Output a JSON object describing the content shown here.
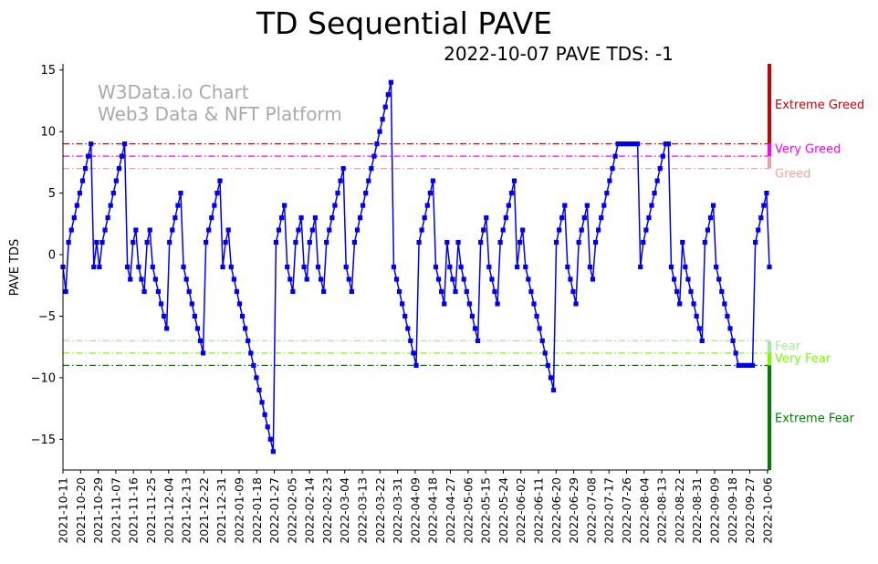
{
  "chart_data": {
    "type": "line",
    "title": "TD Sequential PAVE",
    "subtitle": "2022-10-07 PAVE TDS: -1",
    "ylabel": "PAVE TDS",
    "xlabel": "",
    "ylim": [
      -17.5,
      15.5
    ],
    "yticks": [
      -15,
      -10,
      -5,
      0,
      5,
      10,
      15
    ],
    "watermark": [
      "W3Data.io Chart",
      "Web3 Data & NFT Platform"
    ],
    "xticks": [
      "2021-10-11",
      "2021-10-20",
      "2021-10-29",
      "2021-11-07",
      "2021-11-16",
      "2021-11-25",
      "2021-12-04",
      "2021-12-13",
      "2021-12-22",
      "2021-12-31",
      "2022-01-09",
      "2022-01-18",
      "2022-01-27",
      "2022-02-05",
      "2022-02-14",
      "2022-02-23",
      "2022-03-04",
      "2022-03-13",
      "2022-03-22",
      "2022-03-31",
      "2022-04-09",
      "2022-04-18",
      "2022-04-27",
      "2022-05-06",
      "2022-05-15",
      "2022-05-24",
      "2022-06-02",
      "2022-06-11",
      "2022-06-20",
      "2022-06-29",
      "2022-07-08",
      "2022-07-17",
      "2022-07-26",
      "2022-08-04",
      "2022-08-13",
      "2022-08-22",
      "2022-08-31",
      "2022-09-09",
      "2022-09-18",
      "2022-09-27",
      "2022-10-06"
    ],
    "x_range_days": [
      0,
      361
    ],
    "series_color": "#0000ee",
    "values": [
      -1,
      -3,
      1,
      2,
      3,
      4,
      5,
      6,
      7,
      8,
      9,
      -1,
      1,
      -1,
      1,
      2,
      3,
      4,
      5,
      6,
      7,
      8,
      9,
      -1,
      -2,
      1,
      2,
      -1,
      -2,
      -3,
      1,
      2,
      -1,
      -2,
      -3,
      -4,
      -5,
      -6,
      1,
      2,
      3,
      4,
      5,
      -1,
      -2,
      -3,
      -4,
      -5,
      -6,
      -7,
      -8,
      1,
      2,
      3,
      4,
      5,
      6,
      -1,
      1,
      2,
      -1,
      -2,
      -3,
      -4,
      -5,
      -6,
      -7,
      -8,
      -9,
      -10,
      -11,
      -12,
      -13,
      -14,
      -15,
      -16,
      1,
      2,
      3,
      4,
      -1,
      -2,
      -3,
      1,
      2,
      3,
      -1,
      -2,
      1,
      2,
      3,
      -1,
      -2,
      -3,
      1,
      2,
      3,
      4,
      5,
      6,
      7,
      -1,
      -2,
      -3,
      1,
      2,
      3,
      4,
      5,
      6,
      7,
      8,
      9,
      10,
      11,
      12,
      13,
      14,
      -1,
      -2,
      -3,
      -4,
      -5,
      -6,
      -7,
      -8,
      -9,
      1,
      2,
      3,
      4,
      5,
      6,
      -1,
      -2,
      -3,
      -4,
      1,
      -1,
      -2,
      -3,
      1,
      -1,
      -2,
      -3,
      -4,
      -5,
      -6,
      -7,
      1,
      2,
      3,
      -1,
      -2,
      -3,
      -4,
      1,
      2,
      3,
      4,
      5,
      6,
      -1,
      1,
      2,
      -1,
      -2,
      -3,
      -4,
      -5,
      -6,
      -7,
      -8,
      -9,
      -10,
      -11,
      1,
      2,
      3,
      4,
      -1,
      -2,
      -3,
      -4,
      1,
      2,
      3,
      4,
      -1,
      -2,
      1,
      2,
      3,
      4,
      5,
      6,
      7,
      8,
      9,
      9,
      9,
      9,
      9,
      9,
      9,
      9,
      -1,
      1,
      2,
      3,
      4,
      5,
      6,
      7,
      8,
      9,
      9,
      -1,
      -2,
      -3,
      -4,
      1,
      -1,
      -2,
      -3,
      -4,
      -5,
      -6,
      -7,
      1,
      2,
      3,
      4,
      -1,
      -2,
      -3,
      -4,
      -5,
      -6,
      -7,
      -8,
      -9,
      -9,
      -9,
      -9,
      -9,
      -9,
      1,
      2,
      3,
      4,
      5,
      -1
    ],
    "thresholds": [
      {
        "value": 9,
        "label": "Very Greed",
        "color": "#ff00ff",
        "line_color": "#dd0000",
        "style": "dashdot"
      },
      {
        "value": 8,
        "label": "",
        "color": "#ff00ff",
        "line_color": "#ff00ff",
        "style": "dashdot"
      },
      {
        "value": 7,
        "label": "Greed",
        "color": "#f4a0a0",
        "line_color": "#f4a0a0",
        "style": "dashdot"
      },
      {
        "value": -7,
        "label": "Fear",
        "color": "#a8e6a0",
        "line_color": "#a8e6a0",
        "style": "dashdot"
      },
      {
        "value": -8,
        "label": "Very Fear",
        "color": "#7cfc00",
        "line_color": "#7cfc00",
        "style": "dashdot"
      },
      {
        "value": -9,
        "label": "",
        "color": "#006400",
        "line_color": "#008000",
        "style": "dashdot"
      }
    ],
    "bands": [
      {
        "from": 9,
        "to": 15.5,
        "label": "Extreme Greed",
        "color": "#cc0000"
      },
      {
        "from": 8,
        "to": 9,
        "label": "",
        "color": "#ff00ff"
      },
      {
        "from": 7,
        "to": 8,
        "label": "",
        "color": "#f4a0a0"
      },
      {
        "from": -8,
        "to": -7,
        "label": "",
        "color": "#a8e6a0"
      },
      {
        "from": -9,
        "to": -8,
        "label": "",
        "color": "#7cfc00"
      },
      {
        "from": -17.5,
        "to": -9,
        "label": "Extreme Fear",
        "color": "#008000"
      }
    ]
  }
}
